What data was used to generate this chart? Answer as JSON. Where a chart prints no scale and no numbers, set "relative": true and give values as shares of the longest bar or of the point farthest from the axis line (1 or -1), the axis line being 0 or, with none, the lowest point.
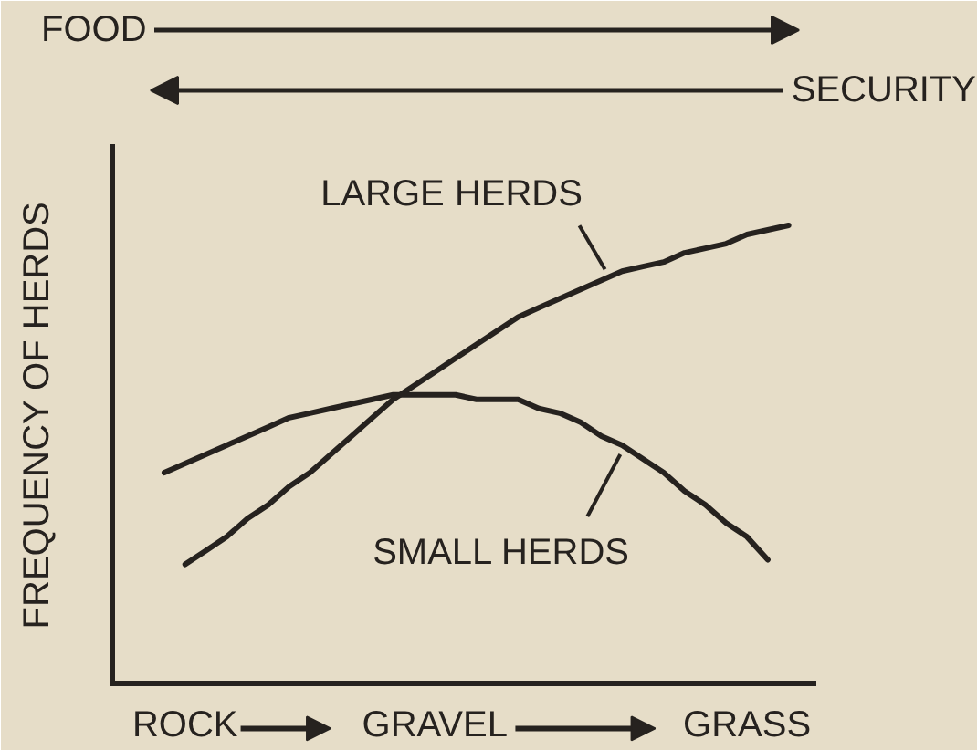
{
  "chart_data": {
    "type": "line",
    "relative": true,
    "ylabel": "FREQUENCY OF HERDS",
    "annotations": [
      "FOOD",
      "SECURITY"
    ],
    "categories": [
      null,
      "ROCK",
      null,
      null,
      null,
      null,
      null,
      null,
      null,
      null,
      null,
      null,
      null,
      "GRAVEL",
      null,
      null,
      null,
      null,
      null,
      null,
      null,
      null,
      null,
      null,
      null,
      null,
      null,
      null,
      "GRASS",
      null,
      null
    ],
    "tick_labels": "x",
    "series": [
      {
        "name": "LARGE HERDS",
        "color": "#26221f",
        "values": [
          null,
          0.26,
          0.29,
          0.32,
          0.36,
          0.39,
          0.43,
          0.46,
          0.5,
          0.54,
          0.58,
          0.62,
          0.65,
          0.68,
          0.71,
          0.74,
          0.77,
          0.8,
          0.82,
          0.84,
          0.86,
          0.88,
          0.9,
          0.91,
          0.92,
          0.94,
          0.95,
          0.96,
          0.98,
          0.99,
          1.0
        ]
      },
      {
        "name": "SMALL HERDS",
        "color": "#26221f",
        "values": [
          0.46,
          0.48,
          0.5,
          0.52,
          0.54,
          0.56,
          0.58,
          0.59,
          0.6,
          0.61,
          0.62,
          0.63,
          0.63,
          0.63,
          0.63,
          0.62,
          0.62,
          0.62,
          0.6,
          0.59,
          0.57,
          0.54,
          0.52,
          0.49,
          0.46,
          0.42,
          0.39,
          0.35,
          0.32,
          0.27,
          null
        ]
      }
    ]
  }
}
